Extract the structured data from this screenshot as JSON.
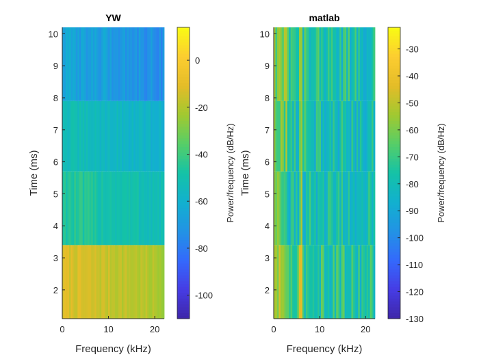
{
  "chart_data": [
    {
      "type": "heatmap",
      "title": "YW",
      "xlabel": "Frequency (kHz)",
      "ylabel": "Time (ms)",
      "xlim": [
        0,
        22.05
      ],
      "ylim": [
        1.1,
        10.2
      ],
      "xticks": [
        "0",
        "10",
        "20"
      ],
      "yticks": [
        "2",
        "3",
        "4",
        "5",
        "6",
        "7",
        "8",
        "9",
        "10"
      ],
      "segments": [
        {
          "t_start": 1.1,
          "t_end": 3.4,
          "level_db": -12,
          "spread_db": 4
        },
        {
          "t_start": 3.4,
          "t_end": 5.7,
          "level_db": -45,
          "spread_db": 5
        },
        {
          "t_start": 5.7,
          "t_end": 7.9,
          "level_db": -52,
          "spread_db": 4
        },
        {
          "t_start": 7.9,
          "t_end": 10.2,
          "level_db": -65,
          "spread_db": 6
        }
      ],
      "colorbar": {
        "label": "Power/frequency (dB/Hz)",
        "range": [
          -110,
          14
        ],
        "ticks": [
          "0",
          "-20",
          "-40",
          "-60",
          "-80",
          "-100"
        ]
      }
    },
    {
      "type": "heatmap",
      "title": "matlab",
      "xlabel": "Frequency (kHz)",
      "ylabel": "Time (ms)",
      "xlim": [
        0,
        22.05
      ],
      "ylim": [
        1.1,
        10.2
      ],
      "xticks": [
        "0",
        "10",
        "20"
      ],
      "yticks": [
        "2",
        "3",
        "4",
        "5",
        "6",
        "7",
        "8",
        "9",
        "10"
      ],
      "segments": [
        {
          "t_start": 1.1,
          "t_end": 3.4,
          "level_db": -70,
          "spread_db": 12
        },
        {
          "t_start": 3.4,
          "t_end": 5.7,
          "level_db": -75,
          "spread_db": 12
        },
        {
          "t_start": 5.7,
          "t_end": 7.9,
          "level_db": -75,
          "spread_db": 12
        },
        {
          "t_start": 7.9,
          "t_end": 10.2,
          "level_db": -72,
          "spread_db": 12
        }
      ],
      "colorbar": {
        "label": "Power/frequency (dB/Hz)",
        "range": [
          -130,
          -22
        ],
        "ticks": [
          "-30",
          "-40",
          "-50",
          "-60",
          "-70",
          "-80",
          "-90",
          "-100",
          "-110",
          "-120",
          "-130"
        ]
      }
    }
  ]
}
